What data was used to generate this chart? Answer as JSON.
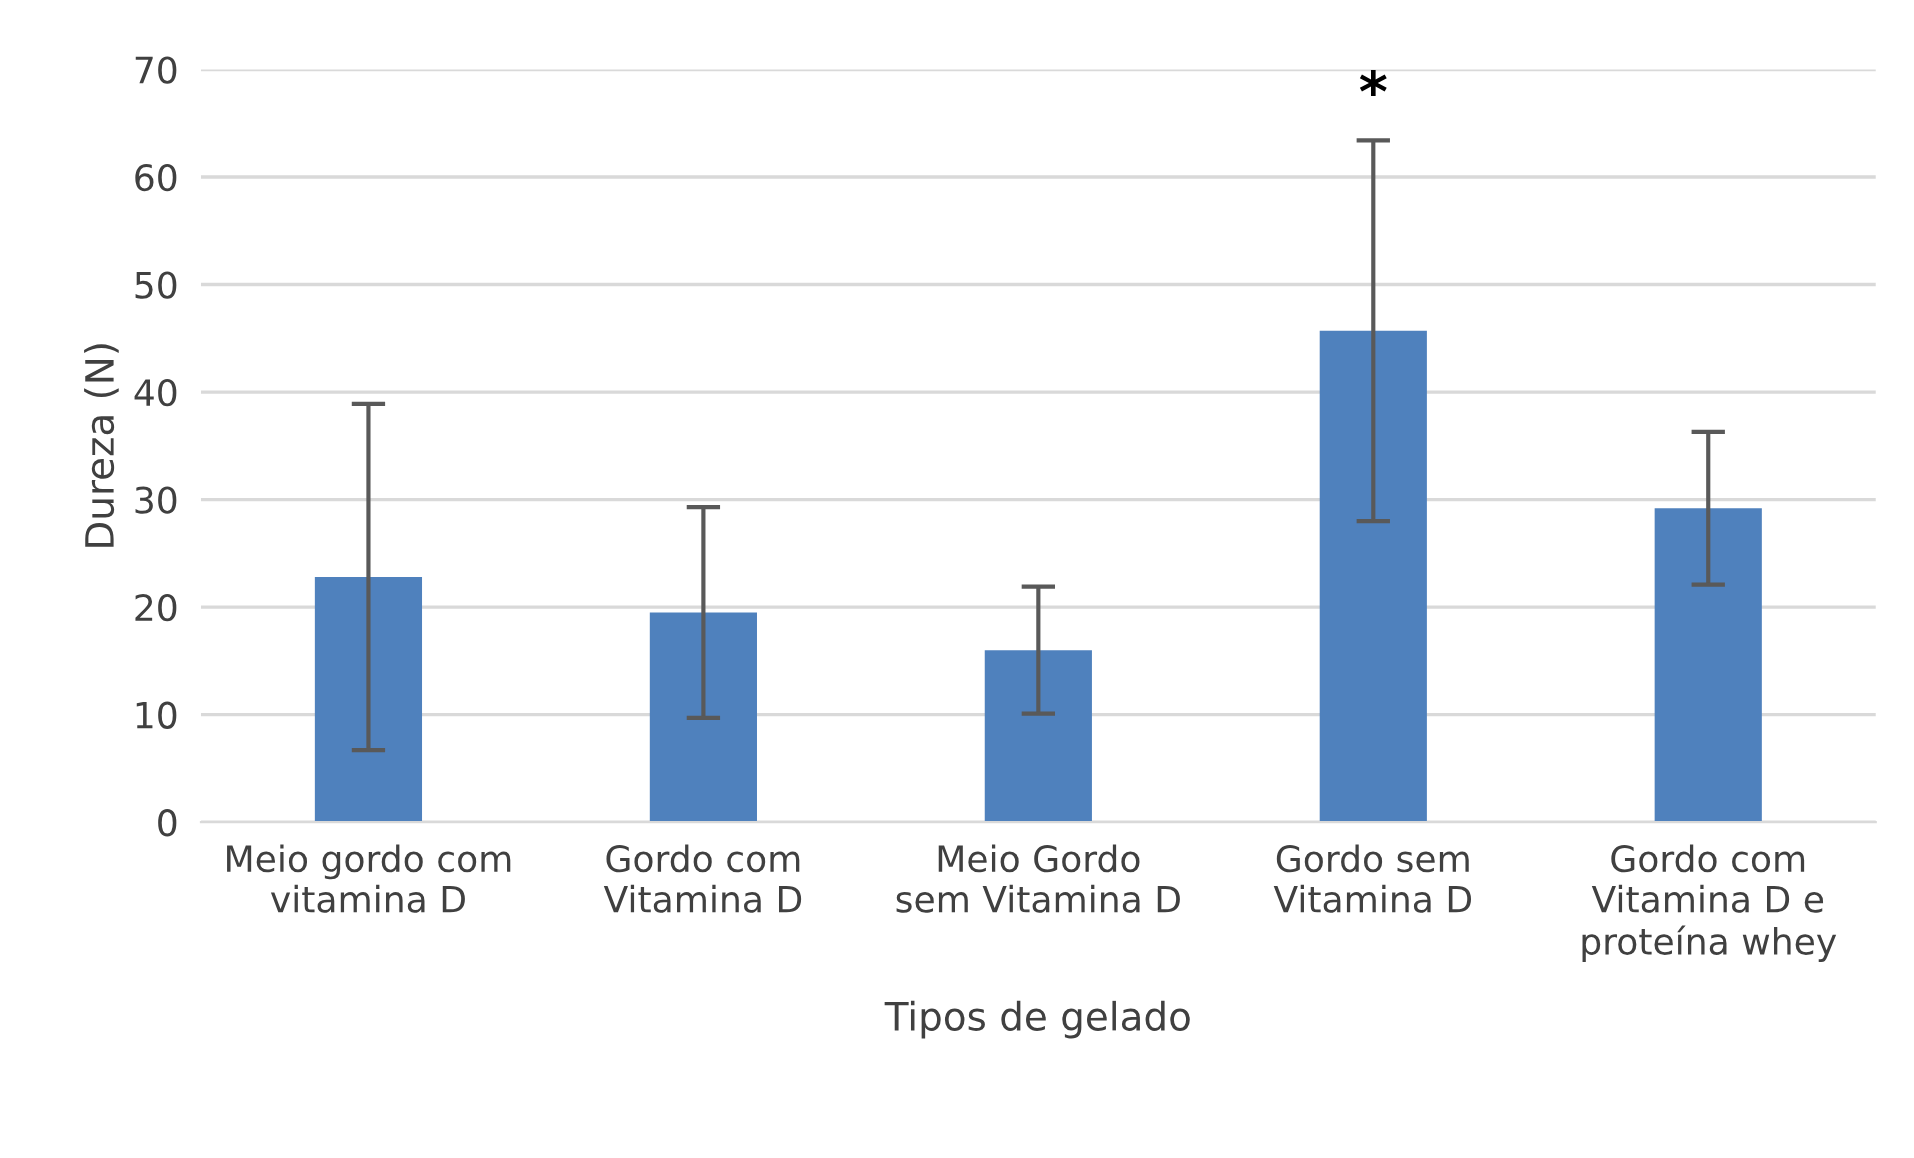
{
  "chart_data": {
    "type": "bar",
    "xlabel": "Tipos de gelado",
    "ylabel": "Dureza (N)",
    "categories": [
      "Meio gordo com\nvitamina D",
      "Gordo com\nVitamina D",
      "Meio Gordo\nsem Vitamina D",
      "Gordo sem\nVitamina D",
      "Gordo com\nVitamina D e\nproteína whey"
    ],
    "values": [
      22.8,
      19.5,
      16.0,
      45.7,
      29.2
    ],
    "errors": [
      16.1,
      9.8,
      5.9,
      17.7,
      7.1
    ],
    "color": "#4f81bd",
    "ylim": [
      0,
      70
    ],
    "yticks": [
      0,
      10,
      20,
      30,
      40,
      50,
      60,
      70
    ],
    "grid": "y",
    "annotations": [
      "*"
    ]
  }
}
